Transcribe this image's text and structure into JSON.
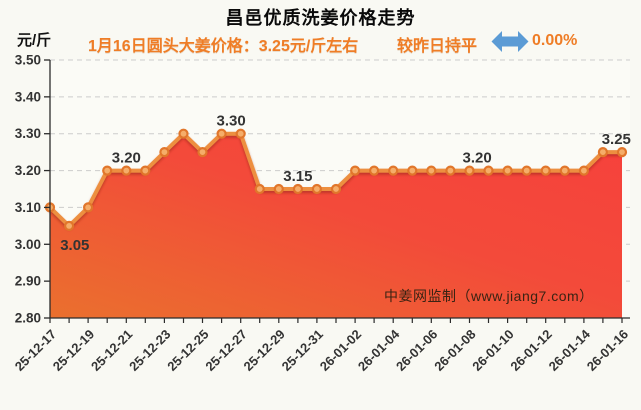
{
  "header": {
    "title": "昌邑优质洗姜价格走势",
    "unit_label": "元/斤",
    "subtitle": "1月16日圆头大姜价格：3.25元/斤左右",
    "comparison_label": "较昨日持平",
    "comparison_value": "0.00%",
    "arrow_icon": "left-right-arrow",
    "accent_color": "#ef7d26",
    "arrow_color": "#5b9bd5"
  },
  "watermark": "中姜网监制（www.jiang7.com）",
  "chart_data": {
    "type": "area",
    "title": "昌邑优质洗姜价格走势",
    "ylabel": "元/斤",
    "xlabel": "",
    "grid": true,
    "legend_position": "none",
    "ylim": [
      2.8,
      3.5
    ],
    "y_tick_labels": [
      "2.80",
      "2.90",
      "3.00",
      "3.10",
      "3.20",
      "3.30",
      "3.40",
      "3.50"
    ],
    "x": [
      "25-12-17",
      "25-12-18",
      "25-12-19",
      "25-12-20",
      "25-12-21",
      "25-12-22",
      "25-12-23",
      "25-12-24",
      "25-12-25",
      "25-12-26",
      "25-12-27",
      "25-12-28",
      "25-12-29",
      "25-12-30",
      "25-12-31",
      "26-01-01",
      "26-01-02",
      "26-01-03",
      "26-01-04",
      "26-01-05",
      "26-01-06",
      "26-01-07",
      "26-01-08",
      "26-01-09",
      "26-01-10",
      "26-01-11",
      "26-01-12",
      "26-01-13",
      "26-01-14",
      "26-01-15",
      "26-01-16"
    ],
    "x_label_every": 2,
    "values": [
      3.1,
      3.05,
      3.1,
      3.2,
      3.2,
      3.2,
      3.25,
      3.3,
      3.25,
      3.3,
      3.3,
      3.15,
      3.15,
      3.15,
      3.15,
      3.15,
      3.2,
      3.2,
      3.2,
      3.2,
      3.2,
      3.2,
      3.2,
      3.2,
      3.2,
      3.2,
      3.2,
      3.2,
      3.2,
      3.25,
      3.25
    ],
    "point_labels": [
      {
        "text": "3.05",
        "i": 1.3,
        "value": 3.05,
        "pos": "below"
      },
      {
        "text": "3.20",
        "i": 4.0,
        "value": 3.2,
        "pos": "above"
      },
      {
        "text": "3.30",
        "i": 9.5,
        "value": 3.3,
        "pos": "above"
      },
      {
        "text": "3.15",
        "i": 13.0,
        "value": 3.15,
        "pos": "above"
      },
      {
        "text": "3.20",
        "i": 22.4,
        "value": 3.2,
        "pos": "above"
      },
      {
        "text": "3.25",
        "i": 29.7,
        "value": 3.25,
        "pos": "above"
      }
    ],
    "colors": {
      "line": "#ed8f40",
      "marker_ring": "#e1762b",
      "marker_center": "#f5ad69",
      "area_bottom_left": "#ea702e",
      "area_mid": "#f34a3a",
      "area_top_right": "#f6413c",
      "grid": "#cccccc",
      "axis": "#2b2b2b",
      "tick_label": "#333333",
      "point_label": "#333333",
      "background": "#f9f9f3"
    }
  }
}
